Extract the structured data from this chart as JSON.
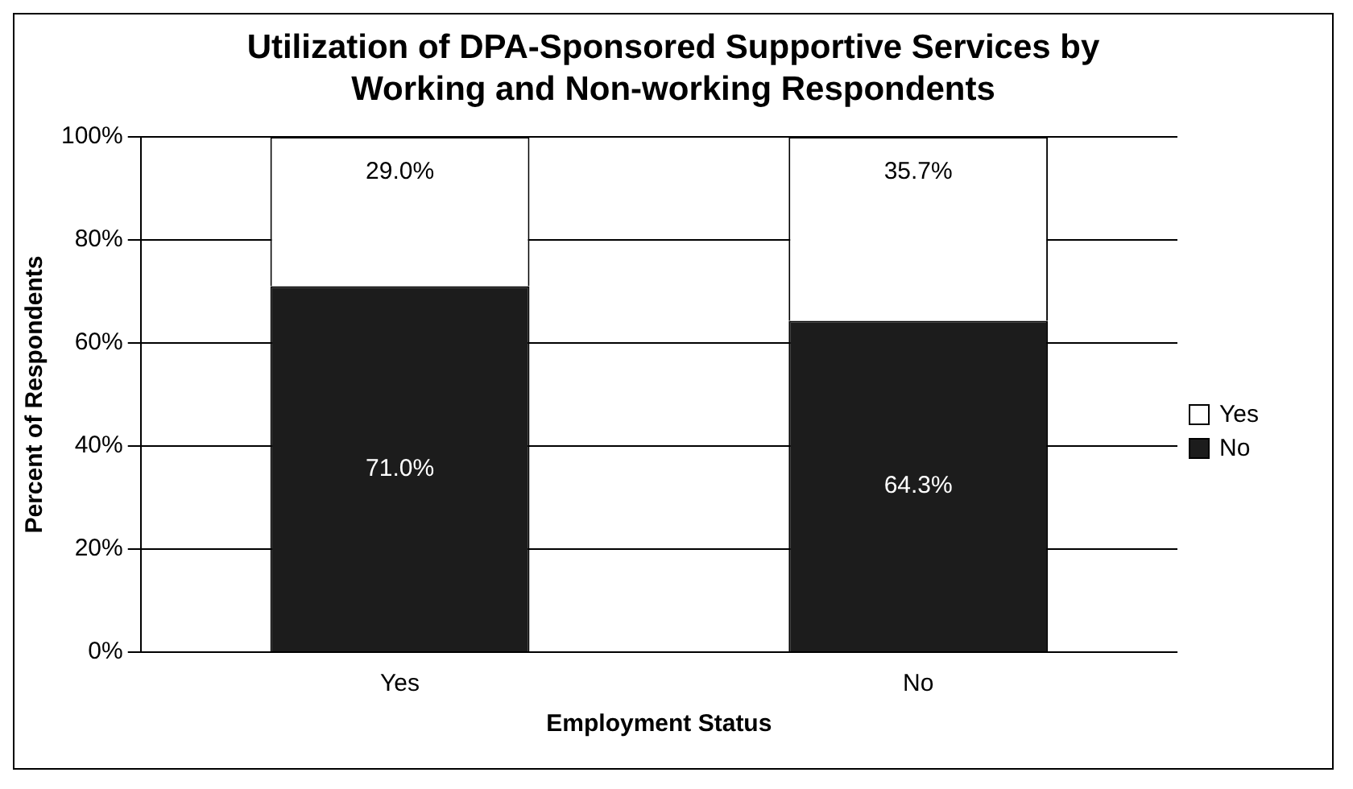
{
  "chart_data": {
    "type": "bar",
    "title": "Utilization of DPA-Sponsored Supportive Services by Working and Non-working Respondents",
    "xlabel": "Employment Status",
    "ylabel": "Percent of Respondents",
    "categories": [
      "Yes",
      "No"
    ],
    "stacked": true,
    "series": [
      {
        "name": "No",
        "color": "#1c1c1c",
        "values": [
          71.0,
          64.3
        ],
        "value_labels": [
          "71.0%",
          "64.3%"
        ]
      },
      {
        "name": "Yes",
        "color": "#ffffff",
        "values": [
          29.0,
          35.7
        ],
        "value_labels": [
          "29.0%",
          "35.7%"
        ]
      }
    ],
    "ylim": [
      0,
      100
    ],
    "yticks": [
      {
        "value": 0,
        "label": "0%"
      },
      {
        "value": 20,
        "label": "20%"
      },
      {
        "value": 40,
        "label": "40%"
      },
      {
        "value": 60,
        "label": "60%"
      },
      {
        "value": 80,
        "label": "80%"
      },
      {
        "value": 100,
        "label": "100%"
      }
    ],
    "grid": "y",
    "legend": "right"
  }
}
